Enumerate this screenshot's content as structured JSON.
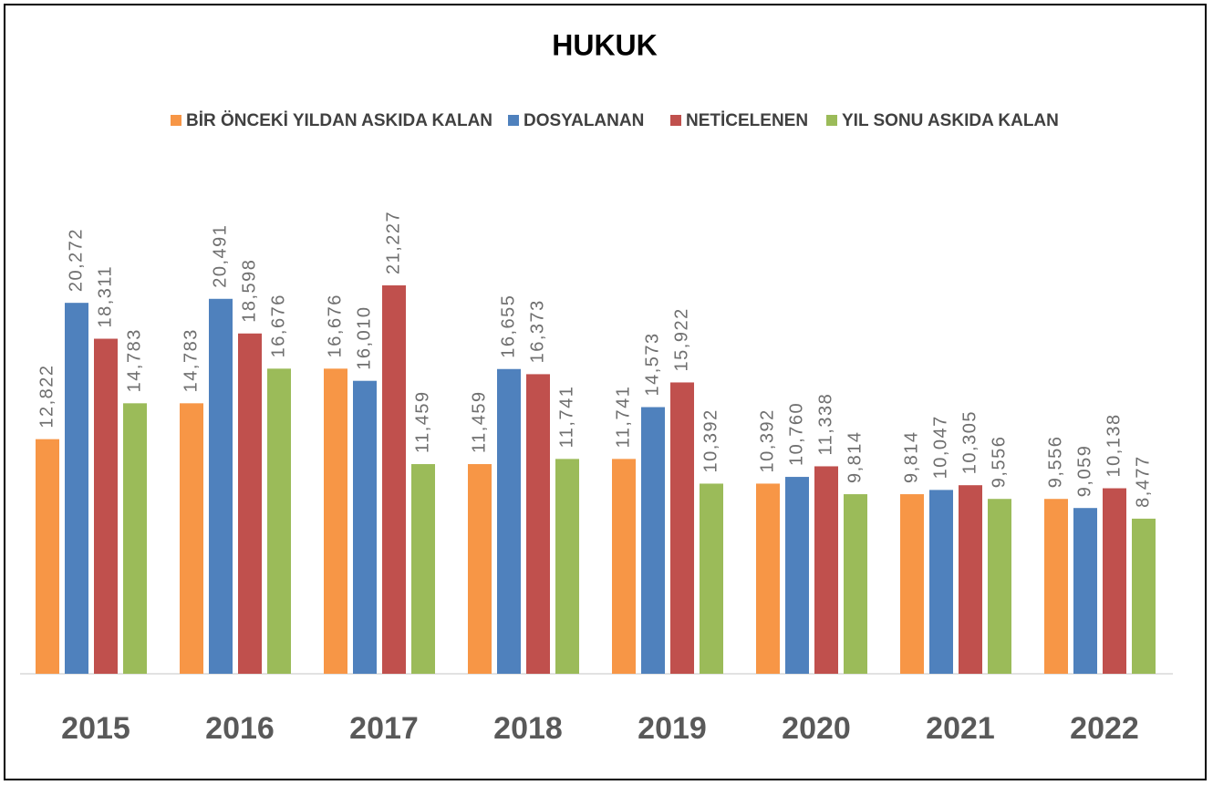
{
  "chart_data": {
    "type": "bar",
    "title": "HUKUK",
    "categories": [
      "2015",
      "2016",
      "2017",
      "2018",
      "2019",
      "2020",
      "2021",
      "2022"
    ],
    "series": [
      {
        "name": "BİR ÖNCEKİ YILDAN ASKIDA KALAN",
        "color": "#f79646",
        "values": [
          12822,
          14783,
          16676,
          11459,
          11741,
          10392,
          9814,
          9556
        ],
        "value_labels": [
          "12,822",
          "14,783",
          "16,676",
          "11,459",
          "11,741",
          "10,392",
          "9,814",
          "9,556"
        ]
      },
      {
        "name": "DOSYALANAN",
        "color": "#4f81bd",
        "values": [
          20272,
          20491,
          16010,
          16655,
          14573,
          10760,
          10047,
          9059
        ],
        "value_labels": [
          "20,272",
          "20,491",
          "16,010",
          "16,655",
          "14,573",
          "10,760",
          "10,047",
          "9,059"
        ]
      },
      {
        "name": "NETİCELENEN",
        "color": "#c0504d",
        "values": [
          18311,
          18598,
          21227,
          16373,
          15922,
          11338,
          10305,
          10138
        ],
        "value_labels": [
          "18,311",
          "18,598",
          "21,227",
          "16,373",
          "15,922",
          "11,338",
          "10,305",
          "10,138"
        ]
      },
      {
        "name": "YIL SONU ASKIDA KALAN",
        "color": "#9bbb59",
        "values": [
          14783,
          16676,
          11459,
          11741,
          10392,
          9814,
          9556,
          8477
        ],
        "value_labels": [
          "14,783",
          "16,676",
          "11,459",
          "11,741",
          "10,392",
          "9,814",
          "9,556",
          "8,477"
        ]
      }
    ]
  }
}
